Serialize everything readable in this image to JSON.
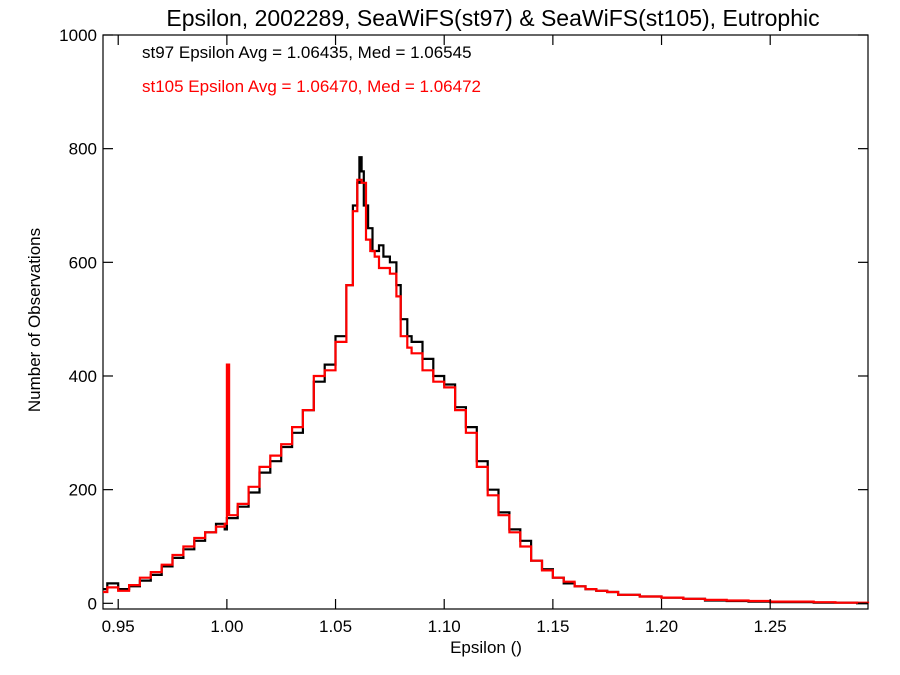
{
  "chart_data": {
    "type": "line",
    "step": true,
    "title": "Epsilon, 2002289, SeaWiFS(st97) & SeaWiFS(st105), Eutrophic",
    "xlabel": "Epsilon ()",
    "ylabel": "Number of Observations",
    "xlim": [
      0.943,
      1.295
    ],
    "ylim": [
      -10,
      1000
    ],
    "xticks": [
      {
        "value": 0.95,
        "label": "0.95"
      },
      {
        "value": 1.0,
        "label": "1.00"
      },
      {
        "value": 1.05,
        "label": "1.05"
      },
      {
        "value": 1.1,
        "label": "1.10"
      },
      {
        "value": 1.15,
        "label": "1.15"
      },
      {
        "value": 1.2,
        "label": "1.20"
      },
      {
        "value": 1.25,
        "label": "1.25"
      }
    ],
    "yticks": [
      {
        "value": 0,
        "label": "0"
      },
      {
        "value": 200,
        "label": "200"
      },
      {
        "value": 400,
        "label": "400"
      },
      {
        "value": 600,
        "label": "600"
      },
      {
        "value": 800,
        "label": "800"
      },
      {
        "value": 1000,
        "label": "1000"
      }
    ],
    "grid": false,
    "annotations": [
      {
        "text": "st97 Epsilon Avg = 1.06435, Med = 1.06545",
        "color": "#000000"
      },
      {
        "text": "st105 Epsilon Avg = 1.06470, Med = 1.06472",
        "color": "#ff0000"
      }
    ],
    "series": [
      {
        "color": "#000000",
        "x": [
          0.943,
          0.945,
          0.95,
          0.955,
          0.96,
          0.965,
          0.97,
          0.975,
          0.98,
          0.985,
          0.99,
          0.995,
          0.999,
          1.0,
          1.005,
          1.01,
          1.015,
          1.02,
          1.025,
          1.03,
          1.035,
          1.04,
          1.045,
          1.05,
          1.055,
          1.058,
          1.06,
          1.061,
          1.062,
          1.063,
          1.065,
          1.067,
          1.07,
          1.072,
          1.075,
          1.078,
          1.08,
          1.083,
          1.085,
          1.09,
          1.095,
          1.1,
          1.105,
          1.11,
          1.115,
          1.12,
          1.125,
          1.13,
          1.135,
          1.14,
          1.145,
          1.15,
          1.155,
          1.16,
          1.165,
          1.17,
          1.175,
          1.18,
          1.19,
          1.2,
          1.21,
          1.22,
          1.23,
          1.24,
          1.25,
          1.26,
          1.27,
          1.28,
          1.29,
          1.295
        ],
        "y": [
          25,
          35,
          25,
          30,
          40,
          50,
          65,
          80,
          95,
          110,
          125,
          140,
          130,
          150,
          170,
          195,
          230,
          250,
          275,
          300,
          340,
          390,
          420,
          470,
          560,
          700,
          740,
          785,
          760,
          700,
          660,
          620,
          630,
          610,
          600,
          560,
          500,
          470,
          460,
          430,
          400,
          385,
          345,
          310,
          250,
          200,
          160,
          130,
          110,
          75,
          60,
          45,
          35,
          30,
          25,
          22,
          20,
          15,
          12,
          10,
          8,
          5,
          4,
          3,
          2,
          2,
          1,
          1,
          0,
          0
        ]
      },
      {
        "color": "#ff0000",
        "x": [
          0.943,
          0.945,
          0.95,
          0.955,
          0.96,
          0.965,
          0.97,
          0.975,
          0.98,
          0.985,
          0.99,
          0.995,
          0.999,
          1.0,
          1.001,
          1.005,
          1.01,
          1.015,
          1.02,
          1.025,
          1.03,
          1.035,
          1.04,
          1.045,
          1.05,
          1.055,
          1.058,
          1.06,
          1.062,
          1.064,
          1.066,
          1.068,
          1.07,
          1.072,
          1.075,
          1.078,
          1.08,
          1.083,
          1.085,
          1.09,
          1.095,
          1.1,
          1.105,
          1.11,
          1.115,
          1.12,
          1.125,
          1.13,
          1.135,
          1.14,
          1.145,
          1.15,
          1.155,
          1.16,
          1.165,
          1.17,
          1.175,
          1.18,
          1.19,
          1.2,
          1.21,
          1.22,
          1.23,
          1.24,
          1.25,
          1.26,
          1.27,
          1.28,
          1.29,
          1.295
        ],
        "y": [
          20,
          28,
          22,
          32,
          45,
          55,
          68,
          85,
          100,
          115,
          125,
          135,
          140,
          420,
          155,
          175,
          205,
          240,
          260,
          280,
          310,
          340,
          400,
          410,
          460,
          560,
          690,
          745,
          740,
          640,
          620,
          610,
          590,
          590,
          580,
          540,
          470,
          450,
          440,
          410,
          390,
          380,
          340,
          300,
          240,
          190,
          155,
          125,
          100,
          75,
          58,
          45,
          38,
          30,
          25,
          22,
          20,
          15,
          12,
          10,
          8,
          6,
          5,
          4,
          3,
          3,
          2,
          1,
          1,
          0
        ]
      }
    ]
  }
}
